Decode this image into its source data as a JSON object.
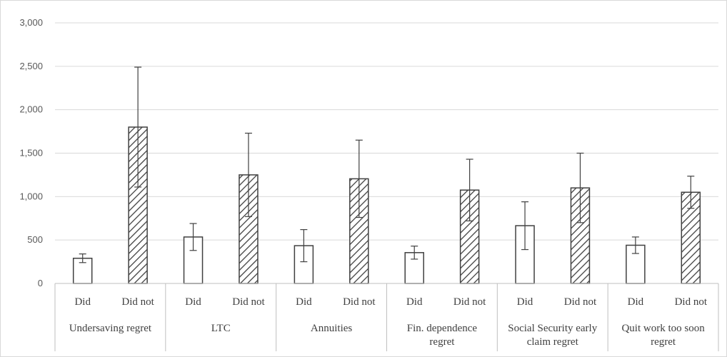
{
  "chart_data": {
    "type": "bar",
    "title": "",
    "xlabel": "",
    "ylabel": "",
    "ylim": [
      0,
      3000
    ],
    "y_ticks": [
      "0",
      "500",
      "1,000",
      "1,500",
      "2,000",
      "2,500",
      "3,000"
    ],
    "y_tick_values": [
      0,
      500,
      1000,
      1500,
      2000,
      2500,
      3000
    ],
    "grid": true,
    "legend": "none",
    "fills": {
      "Did": "#ffffff",
      "Did not": "#ffffff-hatched"
    },
    "colors": {
      "bar_stroke": "#404040",
      "hatch": "#404040",
      "grid": "#d9d9d9",
      "axis": "#bfbfbf"
    },
    "groups": [
      {
        "name_lines": [
          "Undersaving regret"
        ],
        "bars": [
          {
            "label": "Did",
            "value": 290,
            "err": 50,
            "pattern": "plain"
          },
          {
            "label": "Did not",
            "value": 1800,
            "err": 690,
            "pattern": "hatch"
          }
        ]
      },
      {
        "name_lines": [
          "LTC"
        ],
        "bars": [
          {
            "label": "Did",
            "value": 535,
            "err": 155,
            "pattern": "plain"
          },
          {
            "label": "Did not",
            "value": 1250,
            "err": 480,
            "pattern": "hatch"
          }
        ]
      },
      {
        "name_lines": [
          "Annuities"
        ],
        "bars": [
          {
            "label": "Did",
            "value": 435,
            "err": 185,
            "pattern": "plain"
          },
          {
            "label": "Did not",
            "value": 1205,
            "err": 445,
            "pattern": "hatch"
          }
        ]
      },
      {
        "name_lines": [
          "Fin. dependence",
          "regret"
        ],
        "bars": [
          {
            "label": "Did",
            "value": 355,
            "err": 75,
            "pattern": "plain"
          },
          {
            "label": "Did not",
            "value": 1075,
            "err": 355,
            "pattern": "hatch"
          }
        ]
      },
      {
        "name_lines": [
          "Social Security early",
          "claim regret"
        ],
        "bars": [
          {
            "label": "Did",
            "value": 665,
            "err": 275,
            "pattern": "plain"
          },
          {
            "label": "Did not",
            "value": 1100,
            "err": 400,
            "pattern": "hatch"
          }
        ]
      },
      {
        "name_lines": [
          "Quit work too soon",
          "regret"
        ],
        "bars": [
          {
            "label": "Did",
            "value": 440,
            "err": 95,
            "pattern": "plain"
          },
          {
            "label": "Did not",
            "value": 1050,
            "err": 185,
            "pattern": "hatch"
          }
        ]
      }
    ]
  }
}
